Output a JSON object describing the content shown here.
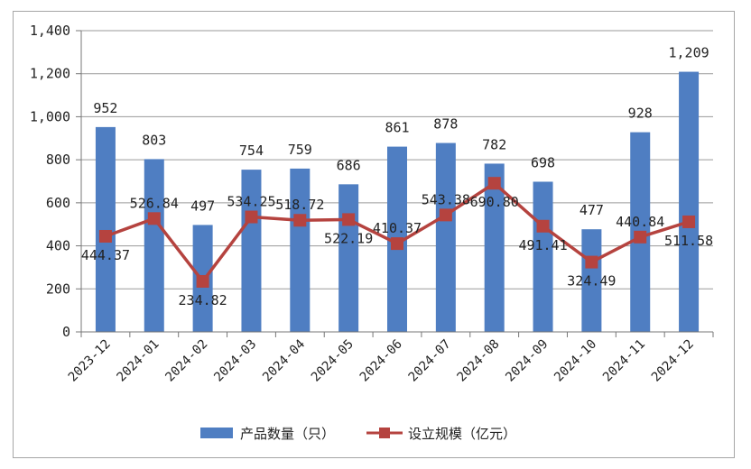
{
  "chart_data": {
    "type": "bar",
    "categories": [
      "2023-12",
      "2024-01",
      "2024-02",
      "2024-03",
      "2024-04",
      "2024-05",
      "2024-06",
      "2024-07",
      "2024-08",
      "2024-09",
      "2024-10",
      "2024-11",
      "2024-12"
    ],
    "series": [
      {
        "name": "产品数量（只）",
        "type": "bar",
        "color": "#4f7ec2",
        "values": [
          952,
          803,
          497,
          754,
          759,
          686,
          861,
          878,
          782,
          698,
          477,
          928,
          1209
        ],
        "labels": [
          "952",
          "803",
          "497",
          "754",
          "759",
          "686",
          "861",
          "878",
          "782",
          "698",
          "477",
          "928",
          "1,209"
        ]
      },
      {
        "name": "设立规模（亿元）",
        "type": "line",
        "color": "#b5433f",
        "values": [
          444.37,
          526.84,
          234.82,
          534.25,
          518.72,
          522.19,
          410.37,
          543.38,
          690.8,
          491.41,
          324.49,
          440.84,
          511.58
        ],
        "labels": [
          "444.37",
          "526.84",
          "234.82",
          "534.25",
          "518.72",
          "522.19",
          "410.37",
          "543.38",
          "690.80",
          "491.41",
          "324.49",
          "440.84",
          "511.58"
        ]
      }
    ],
    "ylim": [
      0,
      1400
    ],
    "yticks": [
      0,
      200,
      400,
      600,
      800,
      1000,
      1200,
      1400
    ],
    "ytick_labels": [
      "0",
      "200",
      "400",
      "600",
      "800",
      "1,000",
      "1,200",
      "1,400"
    ],
    "grid": true,
    "legend_position": "bottom"
  }
}
